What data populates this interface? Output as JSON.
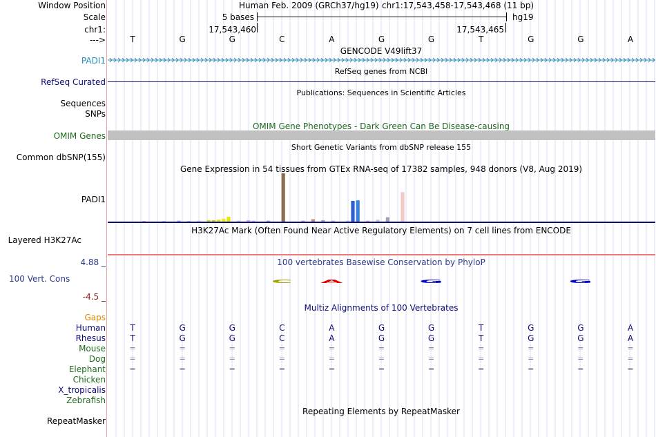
{
  "header": {
    "window_position_label": "Window Position",
    "scale_label": "Scale",
    "chr_label": "chr1:",
    "strand_label": "--->",
    "assembly_text": "Human Feb. 2009 (GRCh37/hg19)",
    "position_text": "chr1:17,543,458-17,543,468 (11 bp)",
    "scale_text": "5 bases",
    "db_text": "hg19",
    "coord_left": "17,543,460",
    "coord_right": "17,543,465"
  },
  "sequence": [
    "T",
    "G",
    "G",
    "C",
    "A",
    "G",
    "G",
    "T",
    "G",
    "G",
    "A"
  ],
  "tracks": {
    "gencode": {
      "title": "GENCODE V49lift37",
      "label": "PADI1",
      "color": "#2a8cb8"
    },
    "refseq": {
      "title": "RefSeq genes from NCBI",
      "label": "RefSeq Curated",
      "color": "#0c0c78"
    },
    "publications": {
      "title": "Publications: Sequences in Scientific Articles",
      "label1": "Sequences",
      "label2": "SNPs"
    },
    "omim": {
      "title": "OMIM Gene Phenotypes - Dark Green Can Be Disease-causing",
      "label": "OMIM Genes",
      "color": "#1e6a1e"
    },
    "dbsnp": {
      "title": "Short Genetic Variants from dbSNP release 155",
      "label": "Common dbSNP(155)"
    },
    "gtex": {
      "title": "Gene Expression in 54 tissues from GTEx RNA-seq of 17382 samples, 948 donors (V8, Aug 2019)",
      "label": "PADI1"
    },
    "h3k27ac": {
      "title": "H3K27Ac Mark (Often Found Near Active Regulatory Elements) on 7 cell lines from ENCODE",
      "label": "Layered H3K27Ac"
    },
    "conservation": {
      "title": "100 vertebrates Basewise Conservation by PhyloP",
      "label": "100 Vert. Cons",
      "max": "4.88 _",
      "min": "-4.5 _",
      "color": "#2c3a8a",
      "min_color": "#8b2323"
    },
    "multiz": {
      "title": "Multiz Alignments of 100 Vertebrates",
      "gaps_label": "Gaps",
      "gaps_color": "#e08800",
      "species": [
        {
          "name": "Human",
          "color": "#0c0c78",
          "row": [
            "T",
            "G",
            "G",
            "C",
            "A",
            "G",
            "G",
            "T",
            "G",
            "G",
            "A"
          ]
        },
        {
          "name": "Rhesus",
          "color": "#0c0c78",
          "row": [
            "T",
            "G",
            "G",
            "C",
            "A",
            "G",
            "G",
            "T",
            "G",
            "G",
            "A"
          ]
        },
        {
          "name": "Mouse",
          "color": "#1e6a1e",
          "row": [
            "=",
            "=",
            "=",
            "=",
            "=",
            "=",
            "=",
            "=",
            "=",
            "=",
            "="
          ]
        },
        {
          "name": "Dog",
          "color": "#1e6a1e",
          "row": [
            "=",
            "=",
            "=",
            "=",
            "=",
            "=",
            "=",
            "=",
            "=",
            "=",
            "="
          ]
        },
        {
          "name": "Elephant",
          "color": "#1e6a1e",
          "row": [
            "=",
            "=",
            "=",
            "=",
            "=",
            "=",
            "=",
            "=",
            "=",
            "=",
            "="
          ]
        },
        {
          "name": "Chicken",
          "color": "#1e6a1e",
          "row": []
        },
        {
          "name": "X_tropicalis",
          "color": "#0c0c78",
          "row": []
        },
        {
          "name": "Zebrafish",
          "color": "#1e6a1e",
          "row": []
        }
      ]
    },
    "repeatmasker": {
      "title": "Repeating Elements by RepeatMasker",
      "label": "RepeatMasker"
    }
  },
  "gtex_bars": [
    {
      "tissue_index": 0,
      "value": 1,
      "color": "#ffaa80"
    },
    {
      "tissue_index": 4,
      "value": 1,
      "color": "#cccccc"
    },
    {
      "tissue_index": 7,
      "value": 2,
      "color": "#aaaaff"
    },
    {
      "tissue_index": 9,
      "value": 1,
      "color": "#c4c4c4"
    },
    {
      "tissue_index": 11,
      "value": 2,
      "color": "#d8d8d8"
    },
    {
      "tissue_index": 13,
      "value": 3,
      "color": "#e0e000"
    },
    {
      "tissue_index": 14,
      "value": 3,
      "color": "#d0d000"
    },
    {
      "tissue_index": 15,
      "value": 4,
      "color": "#e6e600"
    },
    {
      "tissue_index": 16,
      "value": 6,
      "color": "#f0f000"
    },
    {
      "tissue_index": 17,
      "value": 10,
      "color": "#e8e800"
    },
    {
      "tissue_index": 19,
      "value": 2,
      "color": "#cccccc"
    },
    {
      "tissue_index": 21,
      "value": 3,
      "color": "#ccaaff"
    },
    {
      "tissue_index": 22,
      "value": 2,
      "color": "#eeaaff"
    },
    {
      "tissue_index": 25,
      "value": 2,
      "color": "#aaaaaa"
    },
    {
      "tissue_index": 28,
      "value": 100,
      "color": "#8a7050"
    },
    {
      "tissue_index": 32,
      "value": 2,
      "color": "#dda0a0"
    },
    {
      "tissue_index": 34,
      "value": 5,
      "color": "#c49070"
    },
    {
      "tissue_index": 36,
      "value": 3,
      "color": "#aaaaaa"
    },
    {
      "tissue_index": 38,
      "value": 2,
      "color": "#c8b8a0"
    },
    {
      "tissue_index": 41,
      "value": 2,
      "color": "#aaccff"
    },
    {
      "tissue_index": 42,
      "value": 43,
      "color": "#3060d0"
    },
    {
      "tissue_index": 43,
      "value": 44,
      "color": "#3a80e0"
    },
    {
      "tissue_index": 45,
      "value": 2,
      "color": "#ffaa80"
    },
    {
      "tissue_index": 47,
      "value": 4,
      "color": "#cccccc"
    },
    {
      "tissue_index": 49,
      "value": 9,
      "color": "#a0a0b0"
    },
    {
      "tissue_index": 52,
      "value": 61,
      "color": "#f0c8c8"
    }
  ],
  "conservation_logos": [
    {
      "base_index": 3,
      "letter": "C",
      "color": "#a0a000"
    },
    {
      "base_index": 4,
      "letter": "A",
      "color": "#e00000"
    },
    {
      "base_index": 6,
      "letter": "G",
      "color": "#0000cc"
    },
    {
      "base_index": 9,
      "letter": "G",
      "color": "#0000cc"
    }
  ]
}
